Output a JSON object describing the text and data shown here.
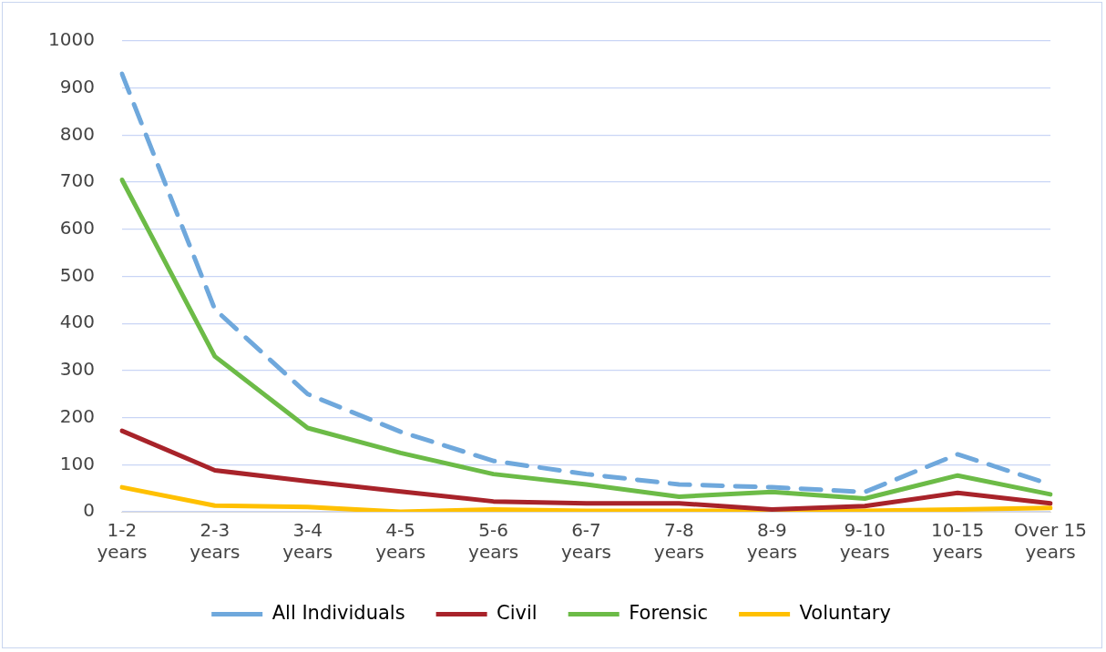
{
  "chart_data": {
    "type": "line",
    "categories": [
      "1-2 years",
      "2-3 years",
      "3-4 years",
      "4-5 years",
      "5-6 years",
      "6-7 years",
      "7-8 years",
      "8-9 years",
      "9-10 years",
      "10-15 years",
      "Over 15 years"
    ],
    "series": [
      {
        "name": "All Individuals",
        "color": "#6fa8dc",
        "line_style": "dashed",
        "values": [
          930,
          430,
          250,
          170,
          108,
          80,
          58,
          52,
          42,
          122,
          58
        ]
      },
      {
        "name": "Civil",
        "color": "#a8232a",
        "values": [
          172,
          88,
          65,
          43,
          22,
          18,
          18,
          5,
          12,
          40,
          18
        ]
      },
      {
        "name": "Forensic",
        "color": "#6cbb47",
        "values": [
          705,
          330,
          178,
          125,
          80,
          58,
          32,
          42,
          28,
          77,
          37
        ]
      },
      {
        "name": "Voluntary",
        "color": "#ffc000",
        "values": [
          52,
          13,
          10,
          0,
          5,
          2,
          2,
          2,
          2,
          5,
          8
        ]
      }
    ],
    "ylim": [
      0,
      1000
    ],
    "yticks": [
      0,
      100,
      200,
      300,
      400,
      500,
      600,
      700,
      800,
      900,
      1000
    ],
    "grid": "y",
    "legend": "bottom",
    "marker": "none"
  }
}
